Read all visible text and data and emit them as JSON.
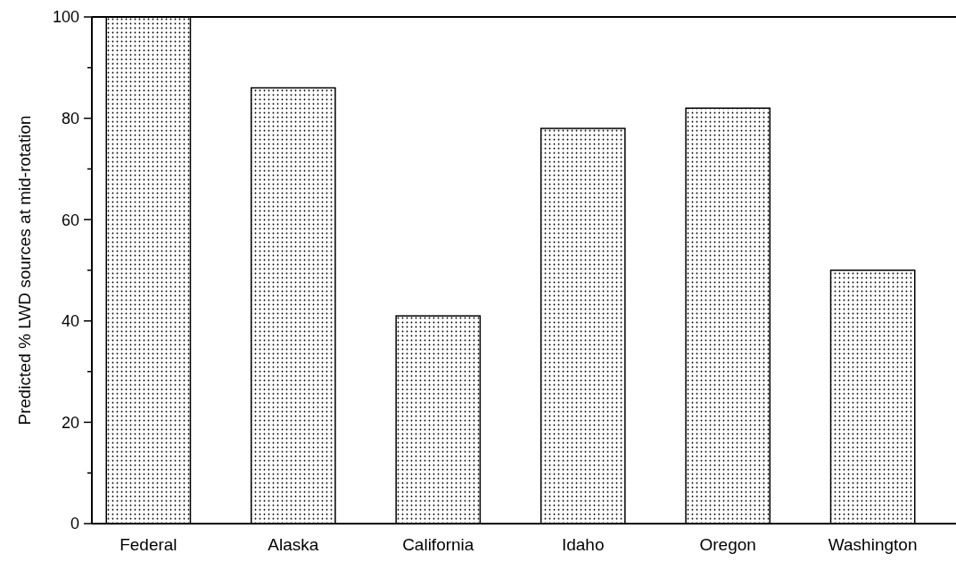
{
  "chart_data": {
    "type": "bar",
    "ylabel": "Predicted % LWD sources at mid-rotation",
    "categories": [
      "Federal",
      "Alaska",
      "California",
      "Idaho",
      "Oregon",
      "Washington"
    ],
    "values": [
      100,
      86,
      41,
      78,
      82,
      50
    ],
    "color": "#000000",
    "ylim": [
      0,
      100
    ],
    "yticks": [
      0,
      {
        "value": 10,
        "label": null
      },
      20,
      {
        "value": 30,
        "label": null
      },
      40,
      {
        "value": 50,
        "label": null
      },
      60,
      {
        "value": 70,
        "label": null
      },
      80,
      {
        "value": 90,
        "label": null
      },
      100
    ],
    "grid": false
  }
}
